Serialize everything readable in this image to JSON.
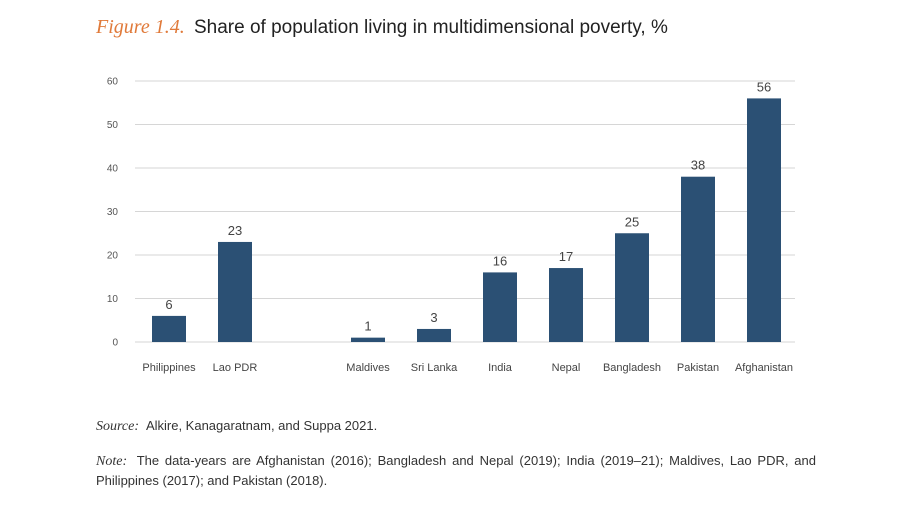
{
  "figure": {
    "label": "Figure 1.4.",
    "title": "Share of population living in multidimensional poverty, %"
  },
  "chart_data": {
    "type": "bar",
    "title": "Share of population living in multidimensional poverty, %",
    "categories": [
      "Philippines",
      "Lao PDR",
      "Maldives",
      "Sri Lanka",
      "India",
      "Nepal",
      "Bangladesh",
      "Pakistan",
      "Afghanistan"
    ],
    "values": [
      6,
      23,
      1,
      3,
      16,
      17,
      25,
      38,
      56
    ],
    "xlabel": "",
    "ylabel": "",
    "ylim": [
      0,
      60
    ],
    "yticks": [
      0,
      10,
      20,
      30,
      40,
      50,
      60
    ],
    "grid": true,
    "bar_color": "#2b5074",
    "legend": "none"
  },
  "source": {
    "lead": "Source:",
    "text": "Alkire, Kanagaratnam, and Suppa 2021."
  },
  "note": {
    "lead": "Note:",
    "text": "The data-years are Afghanistan (2016); Bangladesh and Nepal (2019); India (2019–21); Maldives, Lao PDR, and Philippines (2017); and Pakistan (2018)."
  }
}
